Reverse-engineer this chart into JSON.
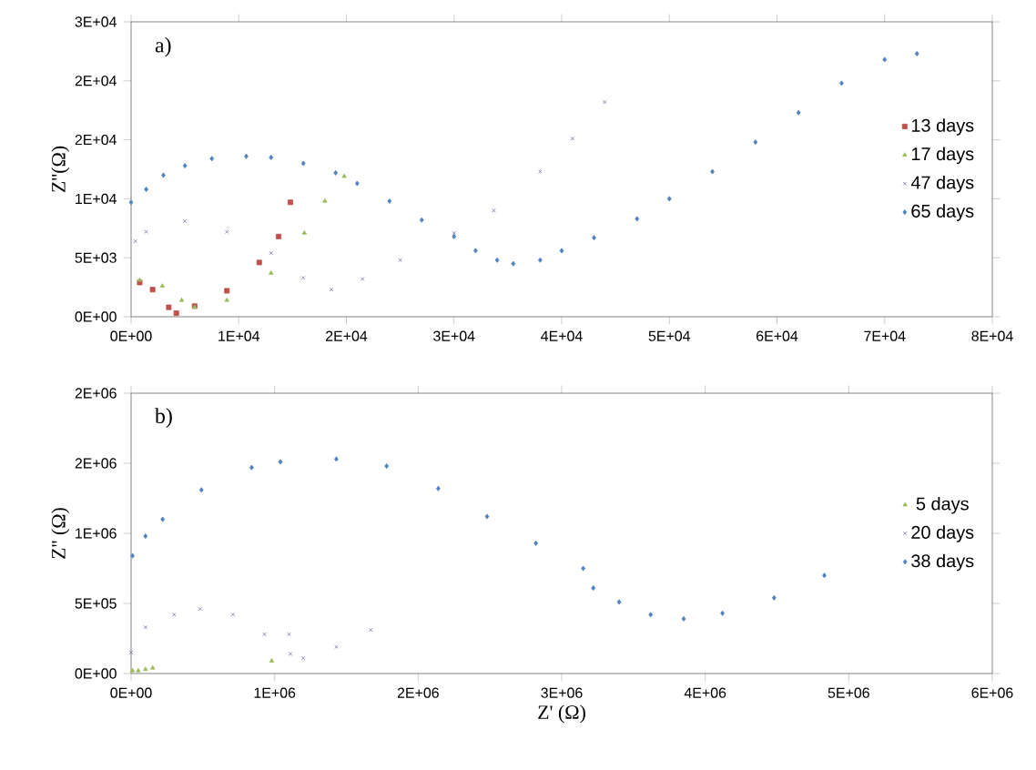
{
  "chart_data": [
    {
      "type": "scatter",
      "ylabel": "Z''(Ω)",
      "annotations": [
        "a)"
      ],
      "legend": "right",
      "xlim": [
        0,
        80000
      ],
      "ylim": [
        0,
        25000
      ],
      "xticks": [
        {
          "value": 0,
          "label": "0E+00"
        },
        {
          "value": 10000,
          "label": "1E+04"
        },
        {
          "value": 20000,
          "label": "2E+04"
        },
        {
          "value": 30000,
          "label": "3E+04"
        },
        {
          "value": 40000,
          "label": "4E+04"
        },
        {
          "value": 50000,
          "label": "5E+04"
        },
        {
          "value": 60000,
          "label": "6E+04"
        },
        {
          "value": 70000,
          "label": "7E+04"
        },
        {
          "value": 80000,
          "label": "8E+04"
        }
      ],
      "yticks": [
        {
          "value": 0,
          "label": "0E+00"
        },
        {
          "value": 5000,
          "label": "5E+03"
        },
        {
          "value": 10000,
          "label": "1E+04"
        },
        {
          "value": 15000,
          "label": "2E+04"
        },
        {
          "value": 20000,
          "label": "2E+04"
        },
        {
          "value": 25000,
          "label": "3E+04"
        }
      ],
      "series": [
        {
          "name": "13 days",
          "color": "#c0504d",
          "marker": "square",
          "x": [
            800,
            2000,
            3500,
            4200,
            5900,
            8900,
            11900,
            13700,
            14800
          ],
          "values": [
            2900,
            2300,
            800,
            300,
            900,
            2200,
            4600,
            6800,
            9700
          ]
        },
        {
          "name": "17 days",
          "color": "#9bbb59",
          "marker": "triangle",
          "x": [
            800,
            2900,
            4700,
            5900,
            8900,
            13000,
            16100,
            18000,
            19800
          ],
          "values": [
            3100,
            2600,
            1400,
            800,
            1400,
            3700,
            7100,
            9800,
            11900
          ]
        },
        {
          "name": "47 days",
          "color": "#8064a2",
          "marker": "cross",
          "x": [
            400,
            1400,
            5000,
            8900,
            13000,
            16000,
            18600,
            21500,
            25000,
            30000,
            33700,
            38000,
            41000,
            44000
          ],
          "values": [
            6400,
            7200,
            8100,
            7200,
            5400,
            3300,
            2300,
            3200,
            4800,
            7100,
            9000,
            12300,
            15100,
            18200
          ]
        },
        {
          "name": "65 days",
          "color": "#4f81bd",
          "marker": "diamond",
          "x": [
            0,
            1400,
            3000,
            5000,
            7500,
            10700,
            13000,
            16000,
            19000,
            21000,
            24000,
            27000,
            30000,
            32000,
            34000,
            35500,
            38000,
            40000,
            43000,
            47000,
            50000,
            54000,
            58000,
            62000,
            66000,
            70000,
            73000
          ],
          "values": [
            9700,
            10800,
            12000,
            12800,
            13400,
            13600,
            13500,
            13000,
            12200,
            11300,
            9800,
            8200,
            6800,
            5600,
            4800,
            4500,
            4800,
            5600,
            6700,
            8300,
            10000,
            12300,
            14800,
            17300,
            19800,
            21800,
            22300
          ]
        }
      ]
    },
    {
      "type": "scatter",
      "xlabel": "Z' (Ω)",
      "ylabel": "Z'' (Ω)",
      "annotations": [
        "b)"
      ],
      "legend": "right",
      "xlim": [
        0,
        6000000
      ],
      "ylim": [
        0,
        2000000
      ],
      "xticks": [
        {
          "value": 0,
          "label": "0E+00"
        },
        {
          "value": 1000000,
          "label": "1E+06"
        },
        {
          "value": 2000000,
          "label": "2E+06"
        },
        {
          "value": 3000000,
          "label": "3E+06"
        },
        {
          "value": 4000000,
          "label": "4E+06"
        },
        {
          "value": 5000000,
          "label": "5E+06"
        },
        {
          "value": 6000000,
          "label": "6E+06"
        }
      ],
      "yticks": [
        {
          "value": 0,
          "label": "0E+00"
        },
        {
          "value": 500000,
          "label": "5E+05"
        },
        {
          "value": 1000000,
          "label": "1E+06"
        },
        {
          "value": 1500000,
          "label": "2E+06"
        },
        {
          "value": 2000000,
          "label": "2E+06"
        }
      ],
      "series": [
        {
          "name": "5 days",
          "color": "#9bbb59",
          "marker": "triangle",
          "x": [
            10000,
            50000,
            100000,
            150000,
            980000
          ],
          "values": [
            20000,
            20000,
            30000,
            40000,
            90000
          ]
        },
        {
          "name": "20 days",
          "color": "#8064a2",
          "marker": "cross",
          "x": [
            0,
            100000,
            300000,
            480000,
            710000,
            930000,
            1100000,
            1110000,
            1200000,
            1430000,
            1670000
          ],
          "values": [
            150000,
            330000,
            420000,
            460000,
            420000,
            280000,
            280000,
            140000,
            110000,
            190000,
            310000
          ]
        },
        {
          "name": "38 days",
          "color": "#4f81bd",
          "marker": "diamond",
          "x": [
            10000,
            100000,
            220000,
            490000,
            840000,
            1040000,
            1430000,
            1780000,
            2140000,
            2480000,
            2820000,
            3150000,
            3220000,
            3400000,
            3620000,
            3850000,
            4120000,
            4480000,
            4830000
          ],
          "values": [
            840000,
            980000,
            1100000,
            1310000,
            1470000,
            1510000,
            1530000,
            1480000,
            1320000,
            1120000,
            930000,
            750000,
            610000,
            510000,
            420000,
            390000,
            430000,
            540000,
            700000
          ]
        }
      ]
    }
  ]
}
